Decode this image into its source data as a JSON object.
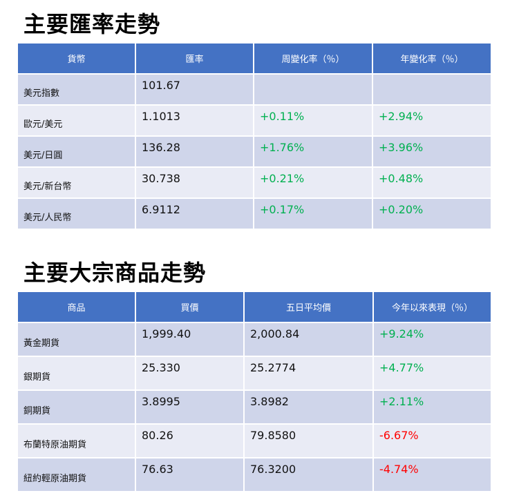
{
  "fx": {
    "title": "主要匯率走勢",
    "headers": [
      "貨幣",
      "匯率",
      "周變化率（％）",
      "年變化率（％）"
    ],
    "rows": [
      {
        "name": "美元指數",
        "rate": "101.67",
        "week": "",
        "year": ""
      },
      {
        "name": "歐元/美元",
        "rate": "1.1013",
        "week": "+0.11%",
        "year": "+2.94%"
      },
      {
        "name": "美元/日圓",
        "rate": "136.28",
        "week": "+1.76%",
        "year": "+3.96%"
      },
      {
        "name": "美元/新台幣",
        "rate": "30.738",
        "week": "+0.21%",
        "year": "+0.48%"
      },
      {
        "name": "美元/人民幣",
        "rate": "6.9112",
        "week": "+0.17%",
        "year": "+0.20%"
      }
    ]
  },
  "commodities": {
    "title": "主要大宗商品走勢",
    "headers": [
      "商品",
      "買價",
      "五日平均價",
      "今年以來表現（％）"
    ],
    "rows": [
      {
        "name": "黃金期貨",
        "bid": "1,999.40",
        "avg5": "2,000.84",
        "ytd": "+9.24%"
      },
      {
        "name": "銀期貨",
        "bid": "25.330",
        "avg5": "25.2774",
        "ytd": "+4.77%"
      },
      {
        "name": "銅期貨",
        "bid": "3.8995",
        "avg5": "3.8982",
        "ytd": "+2.11%"
      },
      {
        "name": "布蘭特原油期貨",
        "bid": "80.26",
        "avg5": "79.8580",
        "ytd": "-6.67%"
      },
      {
        "name": "紐約輕原油期貨",
        "bid": "76.63",
        "avg5": "76.3200",
        "ytd": "-4.74%"
      }
    ]
  },
  "colors": {
    "header": "#4472c4",
    "row_odd": "#cfd5ea",
    "row_even": "#e9ebf5",
    "positive": "#00b050",
    "negative": "#ff0000"
  }
}
